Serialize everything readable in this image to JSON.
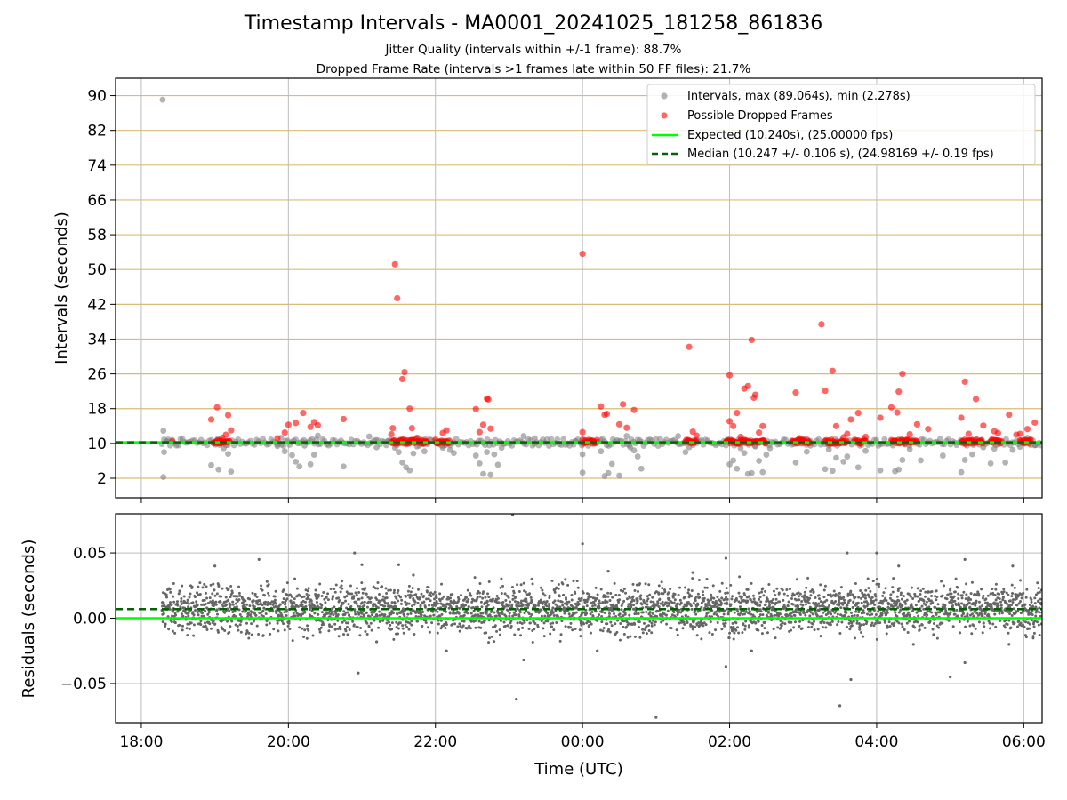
{
  "chart_data": [
    {
      "type": "scatter",
      "title": "Timestamp Intervals - MA0001_20241025_181258_861836",
      "subtitle_1": "Jitter Quality (intervals within +/-1 frame): 88.7%",
      "subtitle_2": "Dropped Frame Rate (intervals >1 frames late within 50 FF files): 21.7%",
      "ylabel": "Intervals (seconds)",
      "xlabel": "",
      "x_unit": "hours since 18:00 UTC (tick labels shown)",
      "xlim": [
        -0.35,
        12.25
      ],
      "ylim": [
        -2.5,
        94
      ],
      "yticks": [
        2,
        10,
        18,
        26,
        34,
        42,
        50,
        58,
        66,
        74,
        82,
        90
      ],
      "xticks": [
        0,
        2,
        4,
        6,
        8,
        10,
        12
      ],
      "xtick_labels": [
        "",
        "",
        "",
        "",
        "",
        "",
        ""
      ],
      "grid": "on",
      "legend_placement": "top-right",
      "legend": [
        "Intervals, max (89.064s), min (2.278s)",
        "Possible Dropped Frames",
        "Expected (10.240s), (25.00000 fps)",
        "Median (10.247 +/- 0.106 s), (24.98169 +/- 0.19 fps)"
      ],
      "expected_interval": 10.24,
      "median_interval": 10.247,
      "series": [
        {
          "name": "Intervals, max (89.064s), min (2.278s)",
          "color": "#808080",
          "points": [
            [
              0.29,
              89.06
            ],
            [
              0.3,
              2.28
            ],
            [
              0.3,
              12.9
            ],
            [
              0.31,
              8.0
            ],
            [
              0.35,
              10.5
            ],
            [
              0.95,
              5.0
            ],
            [
              1.05,
              4.0
            ],
            [
              1.12,
              8.9
            ],
            [
              1.18,
              7.6
            ],
            [
              1.22,
              3.5
            ],
            [
              1.85,
              9.4
            ],
            [
              1.9,
              11.3
            ],
            [
              1.95,
              8.2
            ],
            [
              2.05,
              7.3
            ],
            [
              2.1,
              5.8
            ],
            [
              2.15,
              4.7
            ],
            [
              2.22,
              9.5
            ],
            [
              2.3,
              5.2
            ],
            [
              2.35,
              7.4
            ],
            [
              2.4,
              11.8
            ],
            [
              2.75,
              4.7
            ],
            [
              3.1,
              11.6
            ],
            [
              3.2,
              9.1
            ],
            [
              3.35,
              10.5
            ],
            [
              3.45,
              9.0
            ],
            [
              3.5,
              8.0
            ],
            [
              3.55,
              5.6
            ],
            [
              3.6,
              4.5
            ],
            [
              3.65,
              3.8
            ],
            [
              3.7,
              7.7
            ],
            [
              3.75,
              9.3
            ],
            [
              3.85,
              8.2
            ],
            [
              4.1,
              9.0
            ],
            [
              4.2,
              8.5
            ],
            [
              4.25,
              7.8
            ],
            [
              4.55,
              7.2
            ],
            [
              4.6,
              5.4
            ],
            [
              4.65,
              3.0
            ],
            [
              4.7,
              8.0
            ],
            [
              4.75,
              2.8
            ],
            [
              4.8,
              7.5
            ],
            [
              4.85,
              5.1
            ],
            [
              4.9,
              9.0
            ],
            [
              5.2,
              11.7
            ],
            [
              5.35,
              11.2
            ],
            [
              5.9,
              10.5
            ],
            [
              6.0,
              7.5
            ],
            [
              6.0,
              3.3
            ],
            [
              6.25,
              8.2
            ],
            [
              6.3,
              2.5
            ],
            [
              6.35,
              3.2
            ],
            [
              6.4,
              5.3
            ],
            [
              6.5,
              2.6
            ],
            [
              6.6,
              11.7
            ],
            [
              6.65,
              9.1
            ],
            [
              6.7,
              8.4
            ],
            [
              6.75,
              7.0
            ],
            [
              6.8,
              4.2
            ],
            [
              7.3,
              11.7
            ],
            [
              7.4,
              8.0
            ],
            [
              7.45,
              9.1
            ],
            [
              7.55,
              10.8
            ],
            [
              8.0,
              5.2
            ],
            [
              8.05,
              6.1
            ],
            [
              8.1,
              4.2
            ],
            [
              8.15,
              8.9
            ],
            [
              8.2,
              7.8
            ],
            [
              8.25,
              3.0
            ],
            [
              8.3,
              3.2
            ],
            [
              8.35,
              9.3
            ],
            [
              8.4,
              6.0
            ],
            [
              8.45,
              3.4
            ],
            [
              8.5,
              7.4
            ],
            [
              8.55,
              8.9
            ],
            [
              8.9,
              5.6
            ],
            [
              9.05,
              8.1
            ],
            [
              9.1,
              9.5
            ],
            [
              9.3,
              4.1
            ],
            [
              9.35,
              8.6
            ],
            [
              9.4,
              3.7
            ],
            [
              9.45,
              6.7
            ],
            [
              9.55,
              5.8
            ],
            [
              9.6,
              7.0
            ],
            [
              9.75,
              4.5
            ],
            [
              9.85,
              8.3
            ],
            [
              10.05,
              3.8
            ],
            [
              10.25,
              3.6
            ],
            [
              10.3,
              4.0
            ],
            [
              10.35,
              6.2
            ],
            [
              10.45,
              8.7
            ],
            [
              10.6,
              6.1
            ],
            [
              10.9,
              7.2
            ],
            [
              11.15,
              3.4
            ],
            [
              11.2,
              6.2
            ],
            [
              11.3,
              7.5
            ],
            [
              11.45,
              9.1
            ],
            [
              11.55,
              5.4
            ],
            [
              11.6,
              8.8
            ],
            [
              11.75,
              5.6
            ],
            [
              11.85,
              8.5
            ],
            [
              11.95,
              9.2
            ],
            [
              12.05,
              11.3
            ],
            [
              12.15,
              9.6
            ]
          ]
        },
        {
          "name": "Possible Dropped Frames",
          "color": "#ff0000",
          "points": [
            [
              0.42,
              10.5
            ],
            [
              0.95,
              15.5
            ],
            [
              1.03,
              18.3
            ],
            [
              1.1,
              11.3
            ],
            [
              1.15,
              12.0
            ],
            [
              1.18,
              16.5
            ],
            [
              1.22,
              13.0
            ],
            [
              1.85,
              11.2
            ],
            [
              1.95,
              12.5
            ],
            [
              2.0,
              14.3
            ],
            [
              2.1,
              14.7
            ],
            [
              2.2,
              17.0
            ],
            [
              2.3,
              13.8
            ],
            [
              2.35,
              14.9
            ],
            [
              2.4,
              14.2
            ],
            [
              2.75,
              15.6
            ],
            [
              3.4,
              12.1
            ],
            [
              3.42,
              13.5
            ],
            [
              3.45,
              51.2
            ],
            [
              3.48,
              43.4
            ],
            [
              3.55,
              24.8
            ],
            [
              3.58,
              26.4
            ],
            [
              3.65,
              18.0
            ],
            [
              3.68,
              13.5
            ],
            [
              3.75,
              11.3
            ],
            [
              4.05,
              10.4
            ],
            [
              4.1,
              12.4
            ],
            [
              4.15,
              13.0
            ],
            [
              4.55,
              17.9
            ],
            [
              4.6,
              12.6
            ],
            [
              4.65,
              14.3
            ],
            [
              4.7,
              20.3
            ],
            [
              4.72,
              20.1
            ],
            [
              4.75,
              13.4
            ],
            [
              6.0,
              53.6
            ],
            [
              6.0,
              12.6
            ],
            [
              6.25,
              18.5
            ],
            [
              6.3,
              16.6
            ],
            [
              6.33,
              16.8
            ],
            [
              6.5,
              14.4
            ],
            [
              6.55,
              19.0
            ],
            [
              6.6,
              13.6
            ],
            [
              6.7,
              17.7
            ],
            [
              7.45,
              32.2
            ],
            [
              7.5,
              12.7
            ],
            [
              7.55,
              11.8
            ],
            [
              8.0,
              15.1
            ],
            [
              8.0,
              25.7
            ],
            [
              8.05,
              14.0
            ],
            [
              8.1,
              17.0
            ],
            [
              8.15,
              11.5
            ],
            [
              8.2,
              22.6
            ],
            [
              8.25,
              23.2
            ],
            [
              8.3,
              33.8
            ],
            [
              8.33,
              20.5
            ],
            [
              8.35,
              21.2
            ],
            [
              8.4,
              12.5
            ],
            [
              8.45,
              14.0
            ],
            [
              8.9,
              21.7
            ],
            [
              8.95,
              11.2
            ],
            [
              9.25,
              37.4
            ],
            [
              9.3,
              22.1
            ],
            [
              9.4,
              26.7
            ],
            [
              9.45,
              14.0
            ],
            [
              9.55,
              11.4
            ],
            [
              9.6,
              12.2
            ],
            [
              9.65,
              15.5
            ],
            [
              9.75,
              17.0
            ],
            [
              9.85,
              11.5
            ],
            [
              10.05,
              15.9
            ],
            [
              10.2,
              18.3
            ],
            [
              10.28,
              17.1
            ],
            [
              10.3,
              21.9
            ],
            [
              10.35,
              26.0
            ],
            [
              10.45,
              12.1
            ],
            [
              10.55,
              14.4
            ],
            [
              10.7,
              13.3
            ],
            [
              11.15,
              15.9
            ],
            [
              11.2,
              24.2
            ],
            [
              11.25,
              12.2
            ],
            [
              11.35,
              20.2
            ],
            [
              11.45,
              14.1
            ],
            [
              11.6,
              12.8
            ],
            [
              11.65,
              12.4
            ],
            [
              11.8,
              16.6
            ],
            [
              11.9,
              12.0
            ],
            [
              11.95,
              12.2
            ],
            [
              12.05,
              13.3
            ],
            [
              12.15,
              14.8
            ]
          ],
          "dense_bands": [
            [
              0.98,
              1.2
            ],
            [
              3.4,
              3.9
            ],
            [
              4.0,
              4.2
            ],
            [
              6.0,
              6.2
            ],
            [
              7.4,
              7.55
            ],
            [
              7.95,
              8.5
            ],
            [
              8.85,
              9.1
            ],
            [
              9.3,
              9.6
            ],
            [
              9.7,
              9.85
            ],
            [
              10.2,
              10.55
            ],
            [
              11.15,
              11.45
            ],
            [
              11.55,
              11.7
            ],
            [
              11.95,
              12.1
            ]
          ]
        }
      ]
    },
    {
      "type": "scatter",
      "title": "",
      "xlabel": "Time (UTC)",
      "ylabel": "Residuals (seconds)",
      "xlim": [
        -0.35,
        12.25
      ],
      "ylim": [
        -0.08,
        0.08
      ],
      "yticks": [
        -0.05,
        0.0,
        0.05
      ],
      "ytick_labels": [
        "−0.05",
        "0.00",
        "0.05"
      ],
      "xticks": [
        0,
        2,
        4,
        6,
        8,
        10,
        12
      ],
      "xtick_labels": [
        "18:00",
        "20:00",
        "22:00",
        "00:00",
        "02:00",
        "04:00",
        "06:00"
      ],
      "grid": "on",
      "expected_residual": 0.0,
      "median_residual": 0.007,
      "residual_spread": 0.009,
      "point_color": "#666666",
      "x_range_of_points": [
        0.28,
        12.25
      ],
      "point_count_estimate": 3500,
      "outliers": [
        [
          1.0,
          0.04
        ],
        [
          1.6,
          0.045
        ],
        [
          2.9,
          0.05
        ],
        [
          2.95,
          -0.042
        ],
        [
          3.0,
          0.041
        ],
        [
          3.2,
          -0.018
        ],
        [
          3.5,
          0.041
        ],
        [
          3.7,
          0.033
        ],
        [
          4.15,
          -0.025
        ],
        [
          5.2,
          -0.032
        ],
        [
          5.05,
          0.079
        ],
        [
          5.1,
          -0.062
        ],
        [
          6.0,
          0.057
        ],
        [
          6.2,
          -0.025
        ],
        [
          6.35,
          0.036
        ],
        [
          6.7,
          -0.082
        ],
        [
          7.0,
          -0.076
        ],
        [
          7.5,
          0.035
        ],
        [
          7.95,
          0.046
        ],
        [
          7.95,
          -0.037
        ],
        [
          8.3,
          -0.025
        ],
        [
          9.5,
          -0.067
        ],
        [
          9.6,
          0.05
        ],
        [
          9.65,
          -0.047
        ],
        [
          10.0,
          0.05
        ],
        [
          10.3,
          0.04
        ],
        [
          10.5,
          -0.02
        ],
        [
          11.0,
          -0.045
        ],
        [
          11.2,
          -0.034
        ],
        [
          11.2,
          0.045
        ],
        [
          11.8,
          -0.02
        ],
        [
          11.85,
          0.04
        ]
      ]
    }
  ]
}
